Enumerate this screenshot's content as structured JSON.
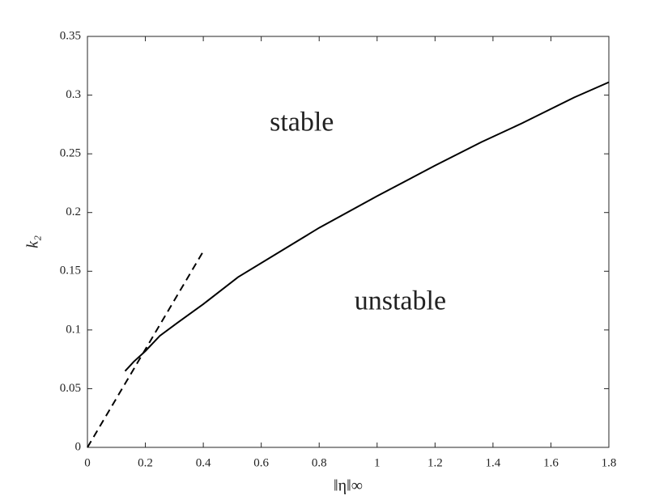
{
  "chart_data": {
    "type": "line",
    "xlabel": "‖η‖∞",
    "ylabel": "k₂",
    "annotations": [
      {
        "text": "stable",
        "x": 0.74,
        "y": 0.275
      },
      {
        "text": "unstable",
        "x": 1.08,
        "y": 0.123
      }
    ],
    "series": [
      {
        "color": "#000000",
        "dash": "solid",
        "x": [
          0.13,
          0.16,
          0.2,
          0.25,
          0.31,
          0.4,
          0.52,
          0.7,
          0.8,
          1.0,
          1.2,
          1.36,
          1.5,
          1.68,
          1.8
        ],
        "values": [
          0.065,
          0.073,
          0.082,
          0.095,
          0.106,
          0.122,
          0.145,
          0.172,
          0.187,
          0.214,
          0.24,
          0.26,
          0.276,
          0.298,
          0.311
        ]
      },
      {
        "color": "#000000",
        "dash": "dashed",
        "x": [
          0,
          0.4
        ],
        "values": [
          0,
          0.167
        ]
      }
    ],
    "xlim": [
      0,
      1.8
    ],
    "xticks": [
      0,
      0.2,
      0.4,
      0.6,
      0.8,
      1,
      1.2,
      1.4,
      1.6,
      1.8
    ],
    "ylim": [
      0,
      0.35
    ],
    "yticks": [
      0,
      0.05,
      0.1,
      0.15,
      0.2,
      0.25,
      0.3,
      0.35
    ],
    "grid": false
  }
}
